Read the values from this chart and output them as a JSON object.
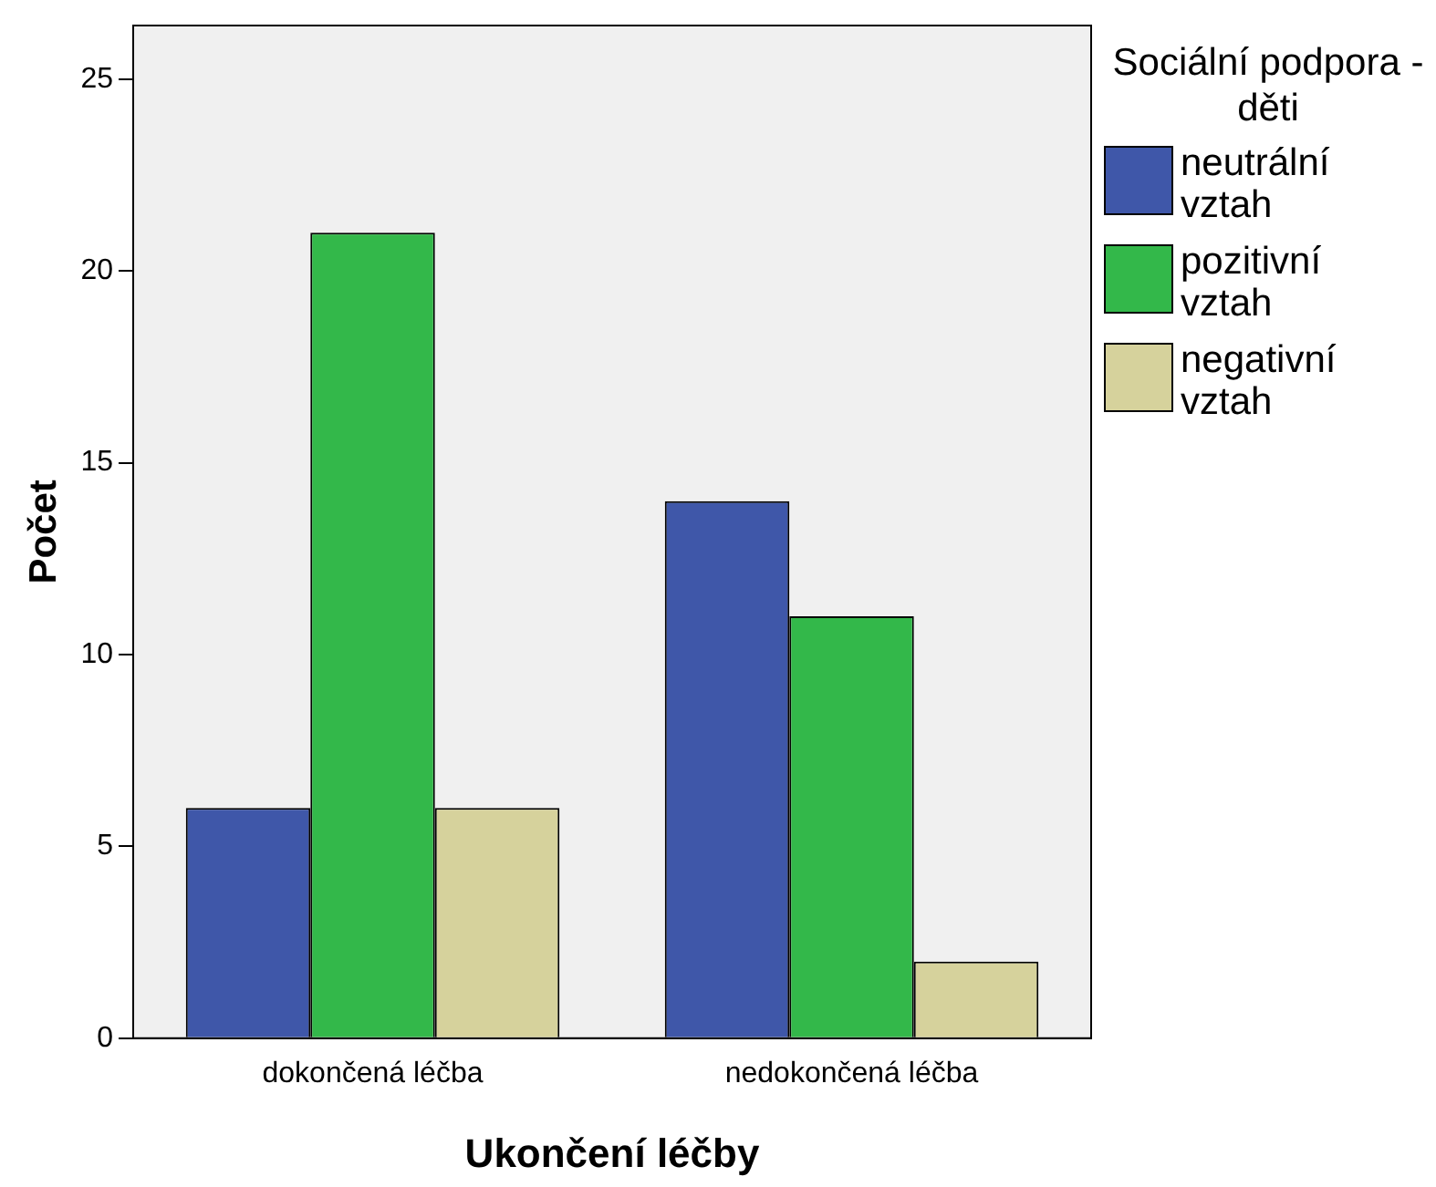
{
  "chart_data": {
    "type": "bar",
    "xlabel": "Ukončení léčby",
    "ylabel": "Počet",
    "legend_title": "Sociální podpora - děti",
    "categories": [
      "dokončená léčba",
      "nedokončená léčba"
    ],
    "series": [
      {
        "name": "neutrální vztah",
        "color": "#3f57a9",
        "values": [
          6,
          14
        ]
      },
      {
        "name": "pozitivní vztah",
        "color": "#33b84a",
        "values": [
          21,
          11
        ]
      },
      {
        "name": "negativní vztah",
        "color": "#d6d29c",
        "values": [
          6,
          2
        ]
      }
    ],
    "ylim": [
      0,
      26.4
    ],
    "yticks": [
      0,
      5,
      10,
      15,
      20,
      25
    ],
    "grid": false,
    "legend": "right"
  }
}
